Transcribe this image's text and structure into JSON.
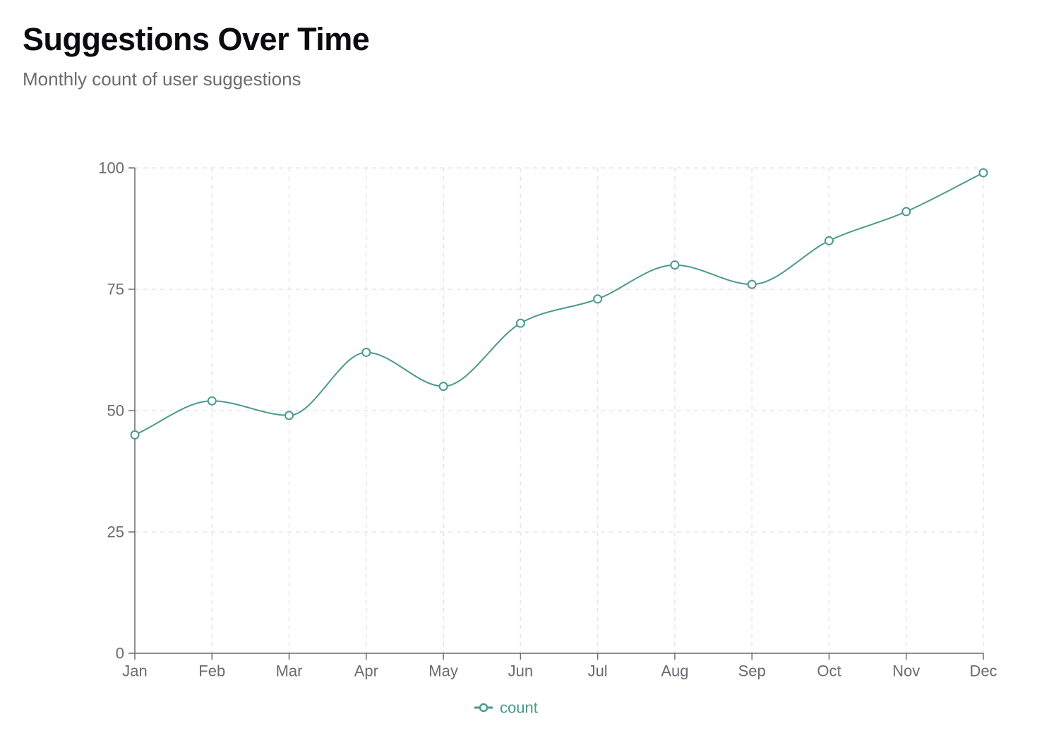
{
  "header": {
    "title": "Suggestions Over Time",
    "subtitle": "Monthly count of user suggestions"
  },
  "chart_data": {
    "type": "line",
    "title": "Suggestions Over Time",
    "subtitle": "Monthly count of user suggestions",
    "xlabel": "",
    "ylabel": "",
    "categories": [
      "Jan",
      "Feb",
      "Mar",
      "Apr",
      "May",
      "Jun",
      "Jul",
      "Aug",
      "Sep",
      "Oct",
      "Nov",
      "Dec"
    ],
    "series": [
      {
        "name": "count",
        "values": [
          45,
          52,
          49,
          62,
          55,
          68,
          73,
          80,
          76,
          85,
          91,
          99
        ],
        "color": "#4a9a8c"
      }
    ],
    "ylim": [
      0,
      100
    ],
    "yticks": [
      0,
      25,
      50,
      75,
      100
    ],
    "grid": true,
    "legend_position": "bottom-center",
    "colors": {
      "axis": "#6b6b73",
      "grid": "#e6e6e6",
      "line": "#4a9a8c"
    }
  }
}
